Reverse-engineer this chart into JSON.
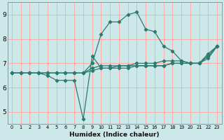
{
  "xlabel": "Humidex (Indice chaleur)",
  "bg_color": "#cce8e8",
  "line_color": "#2d7a6e",
  "grid_color": "#ffaaaa",
  "xlim": [
    -0.5,
    23.5
  ],
  "ylim": [
    4.5,
    9.5
  ],
  "yticks": [
    5,
    6,
    7,
    8,
    9
  ],
  "xticks": [
    0,
    1,
    2,
    3,
    4,
    5,
    6,
    7,
    8,
    9,
    10,
    11,
    12,
    13,
    14,
    15,
    16,
    17,
    18,
    19,
    20,
    21,
    22,
    23
  ],
  "series": [
    {
      "x": [
        0,
        1,
        2,
        3,
        4,
        5,
        6,
        7,
        8,
        9,
        10,
        11,
        12,
        13,
        14,
        15,
        16,
        17,
        18,
        19,
        20,
        21,
        22,
        23
      ],
      "y": [
        6.6,
        6.6,
        6.6,
        6.6,
        6.6,
        6.6,
        6.6,
        6.6,
        6.6,
        7.0,
        8.2,
        8.7,
        8.7,
        9.0,
        9.1,
        8.4,
        8.3,
        7.7,
        7.5,
        7.1,
        7.0,
        7.0,
        7.4,
        7.7
      ]
    },
    {
      "x": [
        0,
        1,
        2,
        3,
        4,
        5,
        6,
        7,
        8,
        9,
        10,
        11,
        12,
        13,
        14,
        15,
        16,
        17,
        18,
        19,
        20,
        21,
        22,
        23
      ],
      "y": [
        6.6,
        6.6,
        6.6,
        6.6,
        6.6,
        6.6,
        6.6,
        6.6,
        6.6,
        6.8,
        6.9,
        6.9,
        6.9,
        6.9,
        6.9,
        6.9,
        6.9,
        6.9,
        7.0,
        7.0,
        7.0,
        7.0,
        7.3,
        7.7
      ]
    },
    {
      "x": [
        0,
        1,
        2,
        3,
        4,
        5,
        6,
        7,
        8,
        9,
        10,
        11,
        12,
        13,
        14,
        15,
        16,
        17,
        18,
        19,
        20,
        21,
        22,
        23
      ],
      "y": [
        6.6,
        6.6,
        6.6,
        6.6,
        6.6,
        6.6,
        6.6,
        6.6,
        6.6,
        6.7,
        6.8,
        6.8,
        6.8,
        6.8,
        6.9,
        6.9,
        6.9,
        6.9,
        7.0,
        7.0,
        7.0,
        7.0,
        7.2,
        7.7
      ]
    },
    {
      "x": [
        0,
        1,
        2,
        3,
        4,
        5,
        6,
        7,
        8,
        9,
        10,
        11,
        12,
        13,
        14,
        15,
        16,
        17,
        18,
        19,
        20,
        21,
        22,
        23
      ],
      "y": [
        6.6,
        6.6,
        6.6,
        6.6,
        6.5,
        6.3,
        6.3,
        6.3,
        4.7,
        7.3,
        6.8,
        6.8,
        6.9,
        6.9,
        7.0,
        7.0,
        7.0,
        7.1,
        7.1,
        7.1,
        7.0,
        7.0,
        7.3,
        7.7
      ]
    }
  ]
}
